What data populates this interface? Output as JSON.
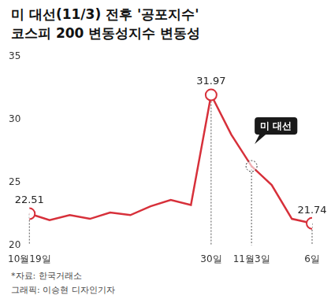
{
  "chart_data": {
    "type": "line",
    "title": "미 대선(11/3) 전후 '공포지수'",
    "subtitle": "코스피 200 변동성지수 변동성",
    "categories": [
      "10월19일",
      null,
      null,
      null,
      null,
      null,
      null,
      null,
      null,
      "30일",
      null,
      "11월3일",
      null,
      null,
      "6일"
    ],
    "values": [
      22.51,
      22.0,
      22.4,
      22.1,
      22.6,
      22.4,
      23.1,
      23.6,
      23.2,
      31.97,
      28.8,
      26.3,
      24.8,
      22.1,
      21.74
    ],
    "value_labels": [
      "22.51",
      null,
      null,
      null,
      null,
      null,
      null,
      null,
      null,
      "31.97",
      null,
      null,
      null,
      null,
      "21.74"
    ],
    "data_labels": true,
    "color": "#d7303a",
    "ylim": [
      20,
      35
    ],
    "yticks": [
      20,
      25,
      30,
      35
    ],
    "grid": false,
    "annotations": [
      {
        "text": "미 대선",
        "x": "11월3일"
      }
    ],
    "source": "*자료: 한국거래소",
    "credit": "그래픽: 이승현 디자인기자"
  }
}
